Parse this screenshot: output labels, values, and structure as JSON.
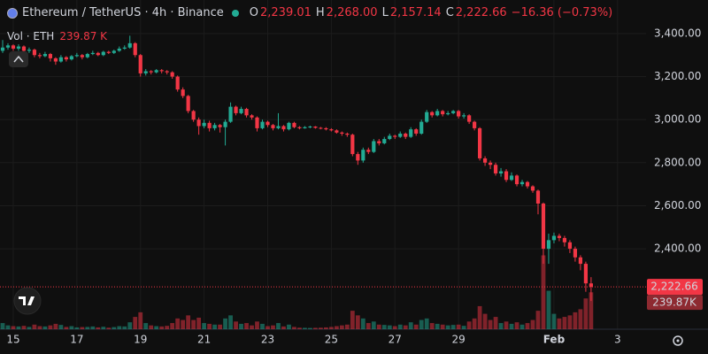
{
  "chart_data": {
    "type": "candlestick",
    "title": "Ethereum / TetherUS · 4h · Binance",
    "ohlc_legend": [
      {
        "key": "O",
        "value": "2,239.01"
      },
      {
        "key": "H",
        "value": "2,268.00"
      },
      {
        "key": "L",
        "value": "2,157.14"
      },
      {
        "key": "C",
        "value": "2,222.66"
      }
    ],
    "change_label": "−16.36 (−0.73%)",
    "volume_title": "Vol · ETH",
    "volume_legend_value": "239.87 K",
    "up_color": "#22ab94",
    "down_color": "#f23645",
    "ylim": [
      2026,
      3556
    ],
    "yticks": [
      {
        "value": 2400,
        "label": "2,400.00"
      },
      {
        "value": 2600,
        "label": "2,600.00"
      },
      {
        "value": 2800,
        "label": "2,800.00"
      },
      {
        "value": 3000,
        "label": "3,000.00"
      },
      {
        "value": 3200,
        "label": "3,200.00"
      },
      {
        "value": 3400,
        "label": "3,400.00"
      }
    ],
    "xlim": [
      -0.5,
      121.37
    ],
    "xticks": [
      {
        "value": 2,
        "label": "15"
      },
      {
        "value": 14,
        "label": "17"
      },
      {
        "value": 26,
        "label": "19"
      },
      {
        "value": 38,
        "label": "21"
      },
      {
        "value": 50,
        "label": "23"
      },
      {
        "value": 62,
        "label": "25"
      },
      {
        "value": 74,
        "label": "27"
      },
      {
        "value": 86,
        "label": "29"
      },
      {
        "value": 104,
        "label": "Feb"
      },
      {
        "value": 116,
        "label": "3"
      }
    ],
    "volume_ylim": [
      0,
      690000
    ],
    "grid": true,
    "last_price": {
      "value": 2222.66,
      "label": "2,222.66"
    },
    "last_volume": {
      "value": 239870,
      "label": "239.87K"
    },
    "open": [
      3320,
      3335,
      3345,
      3330,
      3340,
      3320,
      3325,
      3300,
      3295,
      3305,
      3285,
      3270,
      3290,
      3280,
      3295,
      3300,
      3290,
      3305,
      3310,
      3300,
      3315,
      3310,
      3320,
      3330,
      3335,
      3355,
      3300,
      3215,
      3225,
      3220,
      3230,
      3225,
      3220,
      3200,
      3140,
      3110,
      3040,
      3000,
      2970,
      2985,
      2960,
      2975,
      2965,
      2990,
      3060,
      3030,
      3050,
      3020,
      3010,
      2960,
      2990,
      2975,
      2960,
      2970,
      2955,
      2985,
      2965,
      2960,
      2965,
      2968,
      2962,
      2960,
      2955,
      2950,
      2940,
      2935,
      2930,
      2840,
      2810,
      2860,
      2850,
      2900,
      2890,
      2910,
      2925,
      2920,
      2935,
      2920,
      2955,
      2935,
      2990,
      3035,
      3020,
      3040,
      3025,
      3030,
      3040,
      3015,
      3020,
      2990,
      2960,
      2820,
      2800,
      2790,
      2750,
      2760,
      2720,
      2740,
      2700,
      2710,
      2690,
      2670,
      2610,
      2400,
      2440,
      2460,
      2450,
      2430,
      2400,
      2360,
      2330,
      2239.01
    ],
    "high": [
      3370,
      3355,
      3350,
      3350,
      3345,
      3335,
      3330,
      3310,
      3315,
      3310,
      3290,
      3300,
      3295,
      3300,
      3310,
      3305,
      3310,
      3320,
      3315,
      3320,
      3320,
      3325,
      3340,
      3345,
      3390,
      3360,
      3305,
      3235,
      3230,
      3235,
      3235,
      3230,
      3225,
      3205,
      3150,
      3115,
      3045,
      3010,
      3000,
      2995,
      2985,
      2980,
      3000,
      3080,
      3065,
      3060,
      3055,
      3025,
      3015,
      3000,
      2995,
      2980,
      3030,
      2975,
      2990,
      2990,
      2970,
      2970,
      2972,
      2970,
      2966,
      2965,
      2960,
      2955,
      2945,
      2940,
      2935,
      2850,
      2870,
      2870,
      2910,
      2910,
      2920,
      2935,
      2930,
      2945,
      2940,
      2965,
      2960,
      3000,
      3045,
      3040,
      3050,
      3045,
      3040,
      3045,
      3045,
      3030,
      3025,
      2995,
      2965,
      2830,
      2810,
      2800,
      2775,
      2770,
      2755,
      2745,
      2720,
      2715,
      2695,
      2675,
      2615,
      2470,
      2475,
      2470,
      2460,
      2440,
      2410,
      2370,
      2340,
      2268
    ],
    "low": [
      3310,
      3325,
      3320,
      3320,
      3310,
      3310,
      3290,
      3285,
      3290,
      3270,
      3255,
      3265,
      3270,
      3275,
      3290,
      3280,
      3285,
      3300,
      3295,
      3295,
      3305,
      3305,
      3315,
      3325,
      3330,
      3290,
      3200,
      3205,
      3210,
      3215,
      3215,
      3210,
      3190,
      3130,
      3100,
      3030,
      2990,
      2930,
      2960,
      2945,
      2950,
      2940,
      2880,
      2985,
      3020,
      3025,
      3010,
      3000,
      2945,
      2955,
      2965,
      2950,
      2955,
      2945,
      2950,
      2960,
      2955,
      2958,
      2960,
      2958,
      2955,
      2950,
      2945,
      2935,
      2925,
      2920,
      2830,
      2790,
      2800,
      2840,
      2845,
      2880,
      2885,
      2905,
      2910,
      2915,
      2910,
      2915,
      2925,
      2930,
      2985,
      3010,
      3015,
      3015,
      3020,
      3025,
      3005,
      3005,
      2980,
      2950,
      2810,
      2785,
      2770,
      2740,
      2735,
      2710,
      2715,
      2690,
      2690,
      2680,
      2660,
      2560,
      2330,
      2330,
      2425,
      2435,
      2410,
      2380,
      2340,
      2300,
      2200,
      2157.14
    ],
    "close": [
      3335,
      3345,
      3330,
      3340,
      3320,
      3325,
      3300,
      3295,
      3305,
      3285,
      3270,
      3290,
      3280,
      3295,
      3300,
      3290,
      3305,
      3310,
      3300,
      3315,
      3310,
      3320,
      3330,
      3335,
      3355,
      3300,
      3215,
      3225,
      3220,
      3230,
      3225,
      3220,
      3200,
      3140,
      3110,
      3040,
      3000,
      2970,
      2985,
      2960,
      2975,
      2965,
      2990,
      3060,
      3030,
      3050,
      3020,
      3010,
      2960,
      2990,
      2975,
      2960,
      2970,
      2955,
      2985,
      2965,
      2960,
      2965,
      2968,
      2962,
      2960,
      2955,
      2950,
      2940,
      2935,
      2930,
      2840,
      2810,
      2860,
      2850,
      2900,
      2890,
      2910,
      2925,
      2920,
      2935,
      2920,
      2955,
      2935,
      2990,
      3035,
      3020,
      3040,
      3025,
      3030,
      3040,
      3015,
      3020,
      2990,
      2960,
      2820,
      2800,
      2790,
      2750,
      2760,
      2720,
      2740,
      2700,
      2710,
      2690,
      2670,
      2610,
      2400,
      2440,
      2460,
      2450,
      2430,
      2400,
      2360,
      2330,
      2239.01,
      2222.66
    ],
    "volume": [
      40000,
      25000,
      20000,
      18000,
      22000,
      15000,
      30000,
      20000,
      18000,
      25000,
      35000,
      28000,
      15000,
      20000,
      12000,
      14000,
      15000,
      18000,
      12000,
      16000,
      10000,
      14000,
      20000,
      18000,
      45000,
      80000,
      110000,
      40000,
      25000,
      20000,
      18000,
      22000,
      40000,
      70000,
      60000,
      90000,
      60000,
      75000,
      40000,
      35000,
      30000,
      30000,
      70000,
      90000,
      50000,
      35000,
      40000,
      25000,
      50000,
      35000,
      20000,
      25000,
      40000,
      18000,
      30000,
      15000,
      10000,
      9000,
      8000,
      9000,
      10000,
      12000,
      15000,
      20000,
      25000,
      30000,
      120000,
      90000,
      70000,
      40000,
      50000,
      30000,
      28000,
      25000,
      20000,
      30000,
      25000,
      45000,
      30000,
      60000,
      70000,
      40000,
      35000,
      30000,
      25000,
      28000,
      30000,
      22000,
      50000,
      70000,
      150000,
      100000,
      60000,
      80000,
      40000,
      50000,
      35000,
      45000,
      30000,
      40000,
      60000,
      120000,
      480000,
      250000,
      100000,
      70000,
      80000,
      90000,
      110000,
      130000,
      200000,
      239870
    ]
  }
}
